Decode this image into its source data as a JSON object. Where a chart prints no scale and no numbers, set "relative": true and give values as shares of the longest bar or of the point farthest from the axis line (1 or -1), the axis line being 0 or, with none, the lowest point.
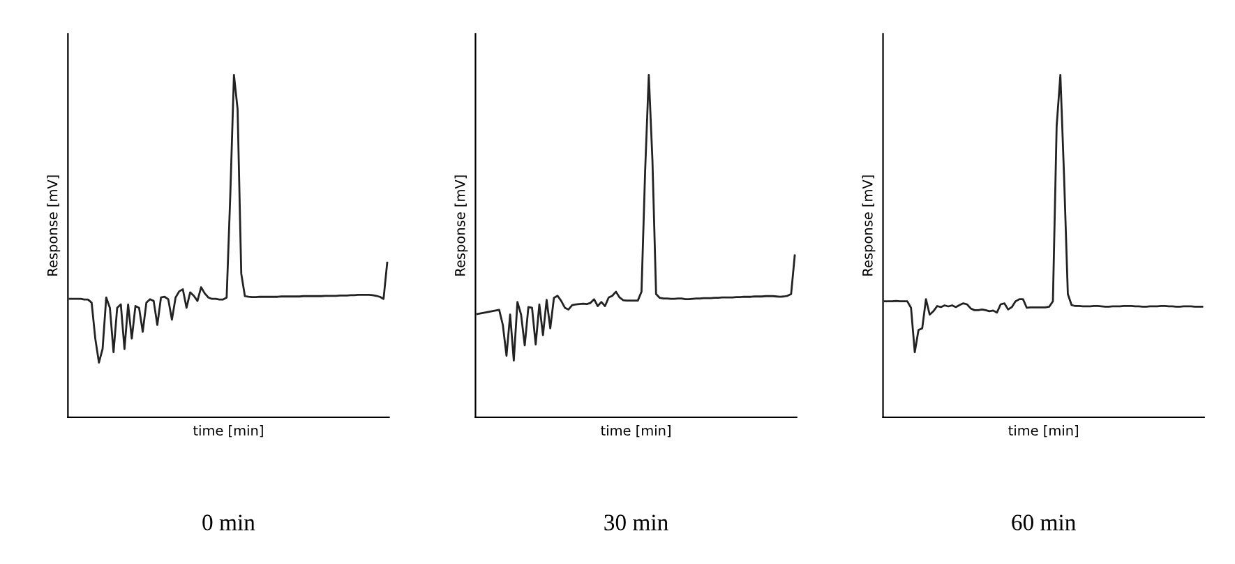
{
  "chart_data": [
    {
      "type": "line",
      "title": "0 min",
      "xlabel": "time [min]",
      "ylabel": "Response [mV]",
      "relative": true,
      "color": "#222222",
      "categories": [
        null,
        null,
        null,
        null,
        null,
        null,
        null,
        null,
        null,
        null,
        null,
        null,
        null,
        null,
        null,
        null,
        null,
        null,
        null,
        null,
        null,
        null,
        null,
        null,
        null,
        null,
        null,
        null,
        null,
        null,
        null,
        null,
        null,
        null,
        null,
        null,
        null,
        null,
        null,
        null,
        null,
        null,
        null,
        null,
        null,
        null,
        null,
        null,
        null,
        null,
        null,
        null,
        null,
        null,
        null,
        null,
        null,
        null,
        null,
        null,
        null,
        null,
        null,
        null,
        null,
        null,
        null,
        null,
        null,
        null,
        null,
        null,
        null,
        null,
        null,
        null,
        null,
        null,
        null,
        null,
        null,
        null,
        null,
        null,
        null,
        null,
        null,
        null
      ],
      "values": [
        0.346,
        0.346,
        0.346,
        0.346,
        0.344,
        0.344,
        0.335,
        0.23,
        0.16,
        0.2,
        0.35,
        0.32,
        0.19,
        0.32,
        0.33,
        0.2,
        0.33,
        0.23,
        0.325,
        0.32,
        0.25,
        0.335,
        0.345,
        0.34,
        0.27,
        0.35,
        0.352,
        0.345,
        0.285,
        0.35,
        0.368,
        0.374,
        0.32,
        0.365,
        0.355,
        0.34,
        0.38,
        0.362,
        0.35,
        0.346,
        0.346,
        0.344,
        0.344,
        0.35,
        0.65,
        1.0,
        0.9,
        0.42,
        0.354,
        0.352,
        0.351,
        0.351,
        0.352,
        0.352,
        0.352,
        0.352,
        0.352,
        0.352,
        0.353,
        0.353,
        0.353,
        0.353,
        0.353,
        0.353,
        0.354,
        0.354,
        0.354,
        0.354,
        0.354,
        0.354,
        0.355,
        0.355,
        0.355,
        0.355,
        0.356,
        0.356,
        0.356,
        0.357,
        0.357,
        0.358,
        0.358,
        0.358,
        0.358,
        0.357,
        0.355,
        0.352,
        0.346,
        0.452
      ]
    },
    {
      "type": "line",
      "title": "30 min",
      "xlabel": "time [min]",
      "ylabel": "Response [mV]",
      "relative": true,
      "color": "#222222",
      "categories": [
        null,
        null,
        null,
        null,
        null,
        null,
        null,
        null,
        null,
        null,
        null,
        null,
        null,
        null,
        null,
        null,
        null,
        null,
        null,
        null,
        null,
        null,
        null,
        null,
        null,
        null,
        null,
        null,
        null,
        null,
        null,
        null,
        null,
        null,
        null,
        null,
        null,
        null,
        null,
        null,
        null,
        null,
        null,
        null,
        null,
        null,
        null,
        null,
        null,
        null,
        null,
        null,
        null,
        null,
        null,
        null,
        null,
        null,
        null,
        null,
        null,
        null,
        null,
        null,
        null,
        null,
        null,
        null,
        null,
        null,
        null,
        null,
        null,
        null,
        null,
        null,
        null,
        null,
        null,
        null,
        null,
        null,
        null,
        null,
        null,
        null,
        null,
        null
      ],
      "values": [
        0.302,
        0.304,
        0.306,
        0.308,
        0.31,
        0.312,
        0.314,
        0.27,
        0.18,
        0.3,
        0.166,
        0.337,
        0.3,
        0.21,
        0.322,
        0.32,
        0.213,
        0.33,
        0.24,
        0.343,
        0.26,
        0.349,
        0.355,
        0.34,
        0.32,
        0.315,
        0.328,
        0.33,
        0.331,
        0.332,
        0.331,
        0.334,
        0.345,
        0.325,
        0.337,
        0.325,
        0.35,
        0.355,
        0.367,
        0.35,
        0.342,
        0.341,
        0.341,
        0.341,
        0.341,
        0.367,
        0.72,
        1.0,
        0.75,
        0.36,
        0.349,
        0.347,
        0.347,
        0.346,
        0.346,
        0.347,
        0.347,
        0.345,
        0.345,
        0.346,
        0.347,
        0.347,
        0.348,
        0.348,
        0.348,
        0.349,
        0.349,
        0.35,
        0.35,
        0.35,
        0.35,
        0.351,
        0.351,
        0.352,
        0.352,
        0.352,
        0.353,
        0.353,
        0.353,
        0.354,
        0.354,
        0.354,
        0.353,
        0.352,
        0.353,
        0.355,
        0.36,
        0.473
      ]
    },
    {
      "type": "line",
      "title": "60 min",
      "xlabel": "time [min]",
      "ylabel": "Response [mV]",
      "relative": true,
      "color": "#222222",
      "categories": [
        null,
        null,
        null,
        null,
        null,
        null,
        null,
        null,
        null,
        null,
        null,
        null,
        null,
        null,
        null,
        null,
        null,
        null,
        null,
        null,
        null,
        null,
        null,
        null,
        null,
        null,
        null,
        null,
        null,
        null,
        null,
        null,
        null,
        null,
        null,
        null,
        null,
        null,
        null,
        null,
        null,
        null,
        null,
        null,
        null,
        null,
        null,
        null,
        null,
        null,
        null,
        null,
        null,
        null,
        null,
        null,
        null,
        null,
        null,
        null,
        null,
        null,
        null,
        null,
        null,
        null,
        null,
        null,
        null,
        null,
        null,
        null,
        null,
        null,
        null,
        null,
        null,
        null,
        null,
        null,
        null,
        null,
        null,
        null,
        null,
        null
      ],
      "values": [
        0.339,
        0.339,
        0.339,
        0.34,
        0.339,
        0.339,
        0.339,
        0.32,
        0.19,
        0.255,
        0.26,
        0.345,
        0.3,
        0.31,
        0.325,
        0.322,
        0.327,
        0.324,
        0.327,
        0.322,
        0.328,
        0.333,
        0.33,
        0.318,
        0.313,
        0.313,
        0.315,
        0.313,
        0.31,
        0.312,
        0.306,
        0.33,
        0.333,
        0.315,
        0.322,
        0.339,
        0.345,
        0.345,
        0.32,
        0.321,
        0.321,
        0.321,
        0.321,
        0.321,
        0.323,
        0.339,
        0.85,
        1.0,
        0.7,
        0.36,
        0.328,
        0.325,
        0.325,
        0.324,
        0.324,
        0.324,
        0.325,
        0.325,
        0.324,
        0.323,
        0.323,
        0.324,
        0.324,
        0.324,
        0.325,
        0.325,
        0.325,
        0.324,
        0.324,
        0.323,
        0.323,
        0.324,
        0.324,
        0.324,
        0.325,
        0.325,
        0.324,
        0.324,
        0.323,
        0.323,
        0.324,
        0.324,
        0.324,
        0.323,
        0.323,
        0.323
      ]
    }
  ]
}
